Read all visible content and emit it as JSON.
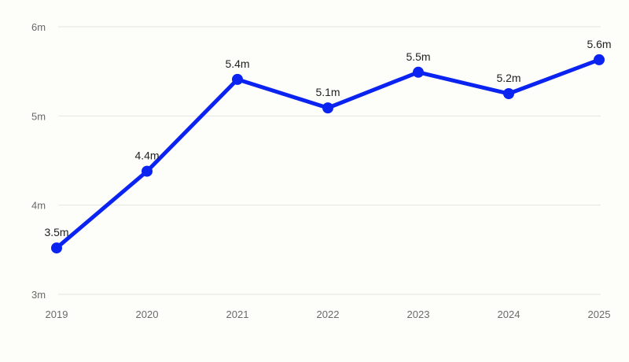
{
  "chart_data": {
    "type": "line",
    "title": "",
    "xlabel": "",
    "ylabel": "",
    "categories": [
      "2019",
      "2020",
      "2021",
      "2022",
      "2023",
      "2024",
      "2025"
    ],
    "series": [
      {
        "values": [
          3.52,
          4.38,
          5.41,
          5.09,
          5.49,
          5.25,
          5.63
        ],
        "labels": [
          "3.5m",
          "4.4m",
          "5.4m",
          "5.1m",
          "5.5m",
          "5.2m",
          "5.6m"
        ],
        "color": "#0a23f0"
      }
    ],
    "ylim": [
      3,
      6
    ],
    "yticks": [
      {
        "value": 3,
        "label": "3m"
      },
      {
        "value": 4,
        "label": "4m"
      },
      {
        "value": 5,
        "label": "5m"
      },
      {
        "value": 6,
        "label": "6m"
      }
    ],
    "grid": true,
    "legend": "none"
  },
  "colors": {
    "background": "#fdfdf9",
    "grid": "#e4e4e0",
    "line": "#0a23f0"
  }
}
